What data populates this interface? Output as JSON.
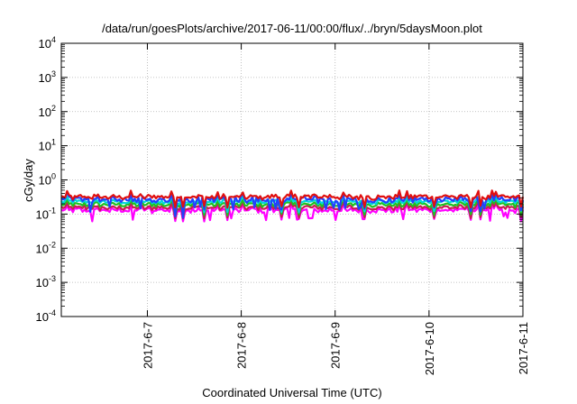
{
  "chart_data": {
    "type": "line",
    "title": "/data/run/goesPlots/archive/2017-06-11/00:00/flux/../bryn/5daysMoon.plot",
    "xlabel": "Coordinated Universal Time (UTC)",
    "ylabel": "cGy/day",
    "yscale": "log",
    "ylim": [
      0.0001,
      10000
    ],
    "y_ticks": [
      {
        "base": "10",
        "exp": "-4"
      },
      {
        "base": "10",
        "exp": "-3"
      },
      {
        "base": "10",
        "exp": "-2"
      },
      {
        "base": "10",
        "exp": "-1"
      },
      {
        "base": "10",
        "exp": "0"
      },
      {
        "base": "10",
        "exp": "1"
      },
      {
        "base": "10",
        "exp": "2"
      },
      {
        "base": "10",
        "exp": "3"
      },
      {
        "base": "10",
        "exp": "4"
      }
    ],
    "xlim": [
      "2017-06-06 02:00",
      "2017-06-11 00:00"
    ],
    "x_ticks": [
      "2017-6-7",
      "2017-6-8",
      "2017-6-9",
      "2017-6-10",
      "2017-6-11"
    ],
    "x_tick_dates": [
      "2017-06-07",
      "2017-06-08",
      "2017-06-09",
      "2017-06-10",
      "2017-06-11"
    ],
    "grid": true,
    "series": [
      {
        "color": "#ff00ff",
        "level": 0.13,
        "noise": 0.18,
        "dips": true
      },
      {
        "color": "#c81e50",
        "level": 0.155,
        "noise": 0.12,
        "dips": false
      },
      {
        "color": "#20c020",
        "level": 0.19,
        "noise": 0.12,
        "dips": false
      },
      {
        "color": "#00d8d8",
        "level": 0.23,
        "noise": 0.12,
        "dips": false
      },
      {
        "color": "#2040ff",
        "level": 0.27,
        "noise": 0.3,
        "dips": true
      },
      {
        "color": "#e01010",
        "level": 0.32,
        "noise": 0.16,
        "dips": false
      }
    ]
  }
}
